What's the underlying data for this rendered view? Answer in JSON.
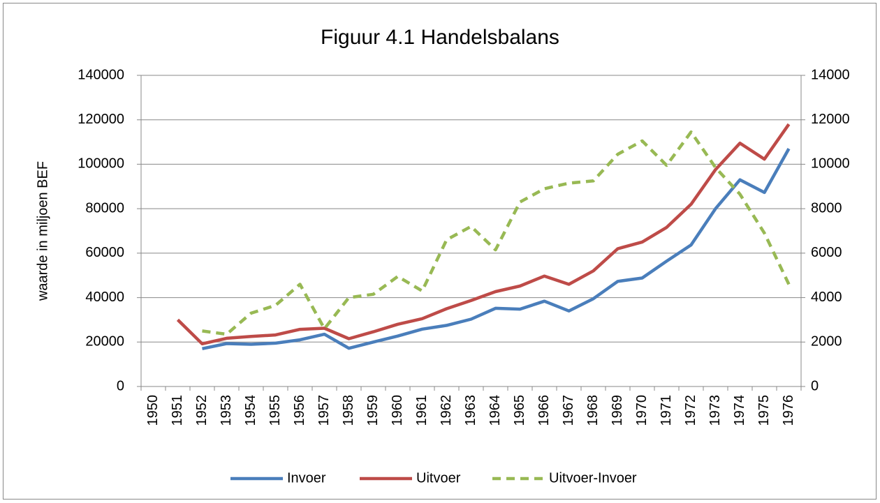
{
  "chart_data": {
    "type": "line",
    "title": "Figuur 4.1 Handelsbalans",
    "y_label": "waarde in miljoen BEF",
    "categories": [
      "1950",
      "1951",
      "1952",
      "1953",
      "1954",
      "1955",
      "1956",
      "1957",
      "1958",
      "1959",
      "1960",
      "1961",
      "1962",
      "1963",
      "1964",
      "1965",
      "1966",
      "1967",
      "1968",
      "1969",
      "1970",
      "1971",
      "1972",
      "1973",
      "1974",
      "1975",
      "1976"
    ],
    "series": [
      {
        "name": "Invoer",
        "color": "#4a7ebb",
        "values": [
          null,
          null,
          17000,
          19300,
          19000,
          19500,
          21000,
          23500,
          17200,
          20000,
          22700,
          25800,
          27500,
          30300,
          35200,
          34800,
          38400,
          34000,
          39500,
          47300,
          48800,
          56400,
          63700,
          80000,
          93000,
          87300,
          107000
        ]
      },
      {
        "name": "Uitvoer",
        "color": "#be4b48",
        "values": [
          null,
          30000,
          19200,
          21700,
          22500,
          23200,
          25700,
          26200,
          21500,
          24600,
          28000,
          30500,
          35000,
          38700,
          42700,
          45200,
          49700,
          46000,
          52000,
          62000,
          65000,
          71600,
          82000,
          97600,
          109500,
          102300,
          118000
        ]
      },
      {
        "name": "Uitvoer-Invoer",
        "color": "#98b954",
        "dashed": true,
        "axis": "y2",
        "values": [
          null,
          null,
          2500,
          2350,
          3300,
          3650,
          4600,
          2600,
          4000,
          4150,
          4950,
          4300,
          6600,
          7200,
          6150,
          8300,
          8900,
          9150,
          9250,
          10450,
          11050,
          9950,
          11450,
          9850,
          8650,
          6900,
          4600
        ]
      }
    ],
    "ylim": [
      0,
      140000
    ],
    "yticks": [
      0,
      20000,
      40000,
      60000,
      80000,
      100000,
      120000,
      140000
    ],
    "y2lim": [
      0,
      14000
    ],
    "y2ticks": [
      0,
      2000,
      4000,
      6000,
      8000,
      10000,
      12000,
      14000
    ],
    "grid": true,
    "legend": "bottom"
  }
}
